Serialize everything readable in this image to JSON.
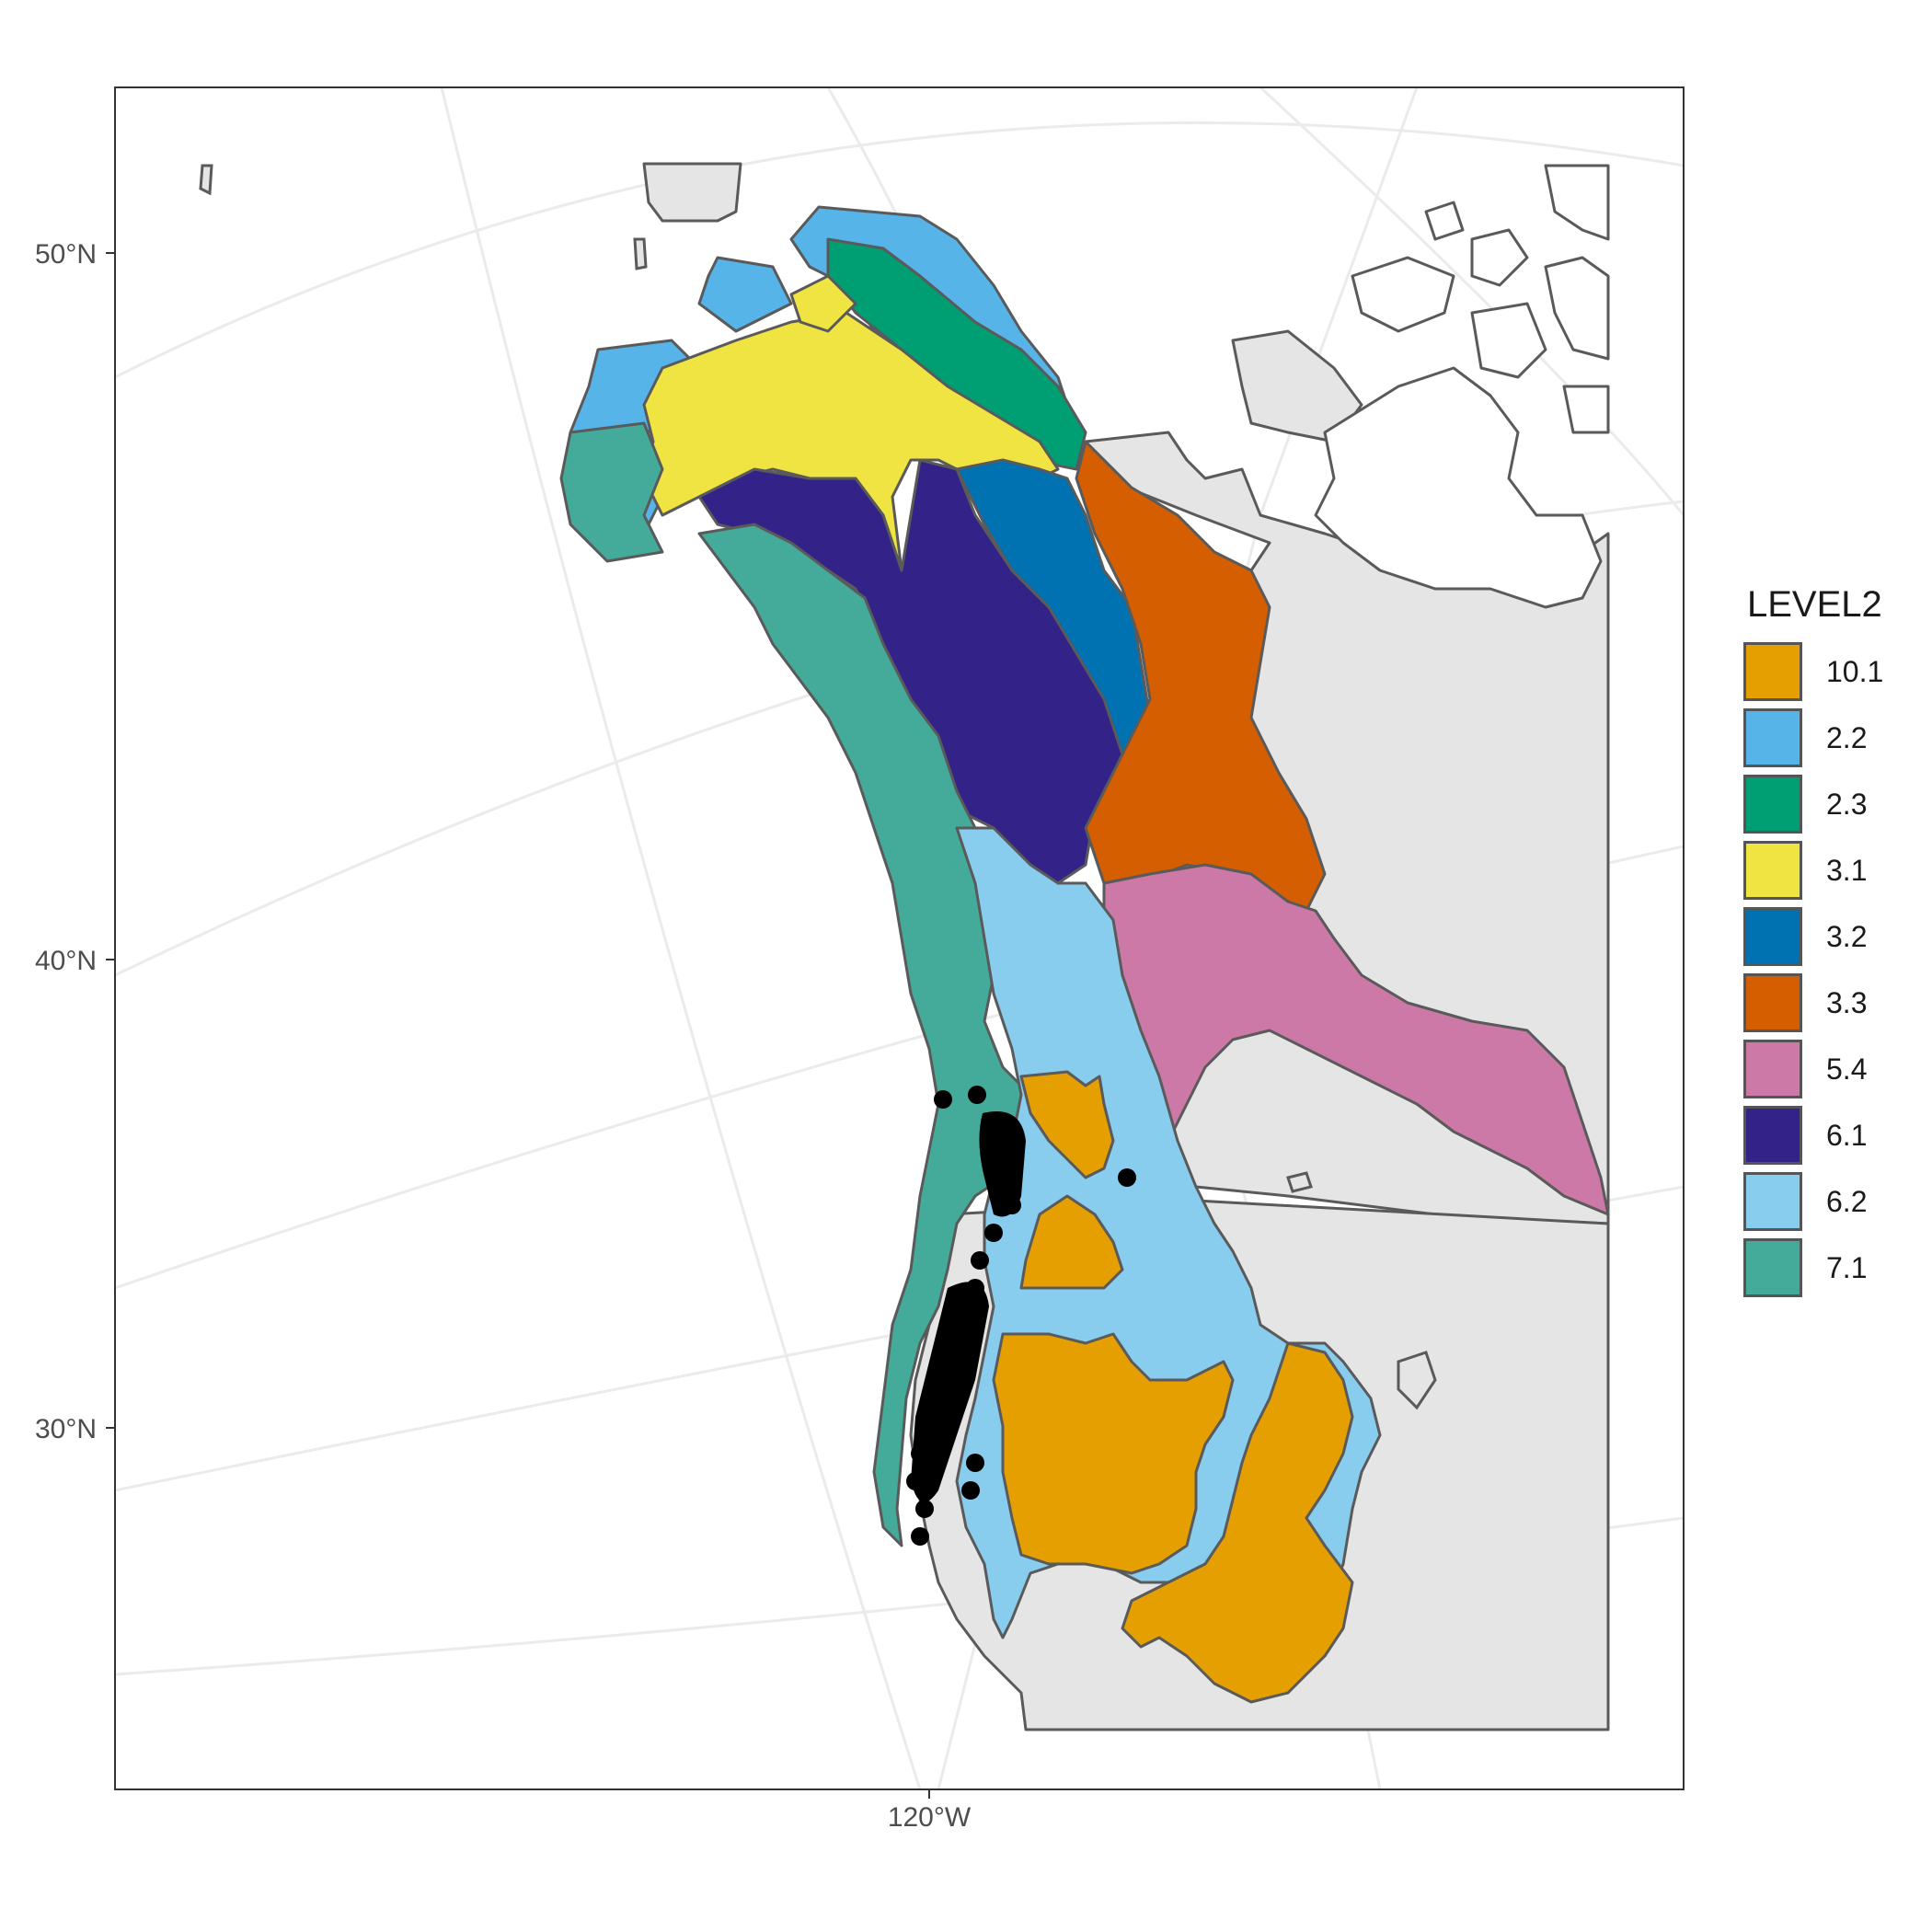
{
  "map": {
    "y_axis": [
      "50°N",
      "40°N",
      "30°N"
    ],
    "x_axis": [
      "120°W"
    ]
  },
  "legend": {
    "title": "LEVEL2",
    "items": [
      {
        "label": "10.1",
        "color": "#E69F00"
      },
      {
        "label": "2.2",
        "color": "#56B4E9"
      },
      {
        "label": "2.3",
        "color": "#009E73"
      },
      {
        "label": "3.1",
        "color": "#F0E442"
      },
      {
        "label": "3.2",
        "color": "#0072B2"
      },
      {
        "label": "3.3",
        "color": "#D55E00"
      },
      {
        "label": "5.4",
        "color": "#CC79A7"
      },
      {
        "label": "6.1",
        "color": "#332288"
      },
      {
        "label": "6.2",
        "color": "#88CCEE"
      },
      {
        "label": "7.1",
        "color": "#44AA99"
      }
    ]
  },
  "colors": {
    "land": "#e5e5e5",
    "outline": "#5a5a5a",
    "graticule": "#ebebeb",
    "points": "#000000"
  }
}
